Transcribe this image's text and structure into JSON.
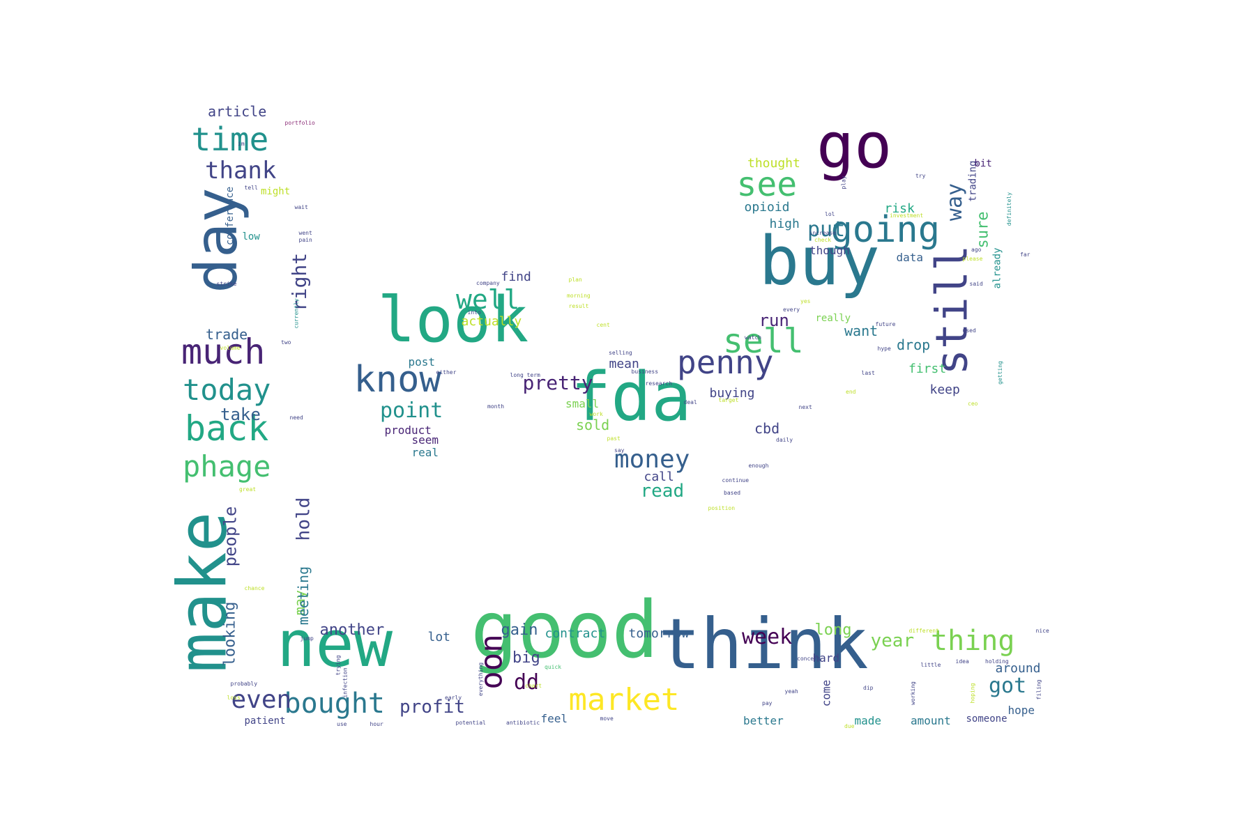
{
  "wordcloud": {
    "palette": [
      "#440154",
      "#482475",
      "#414487",
      "#355f8d",
      "#2a788e",
      "#21918c",
      "#22a884",
      "#44bf70",
      "#7ad151",
      "#bddf26",
      "#fde725"
    ],
    "words": [
      {
        "text": "good",
        "weight": 100,
        "color": "#44bf70"
      },
      {
        "text": "think",
        "weight": 92,
        "color": "#355f8d"
      },
      {
        "text": "new",
        "weight": 88,
        "color": "#22a884"
      },
      {
        "text": "make",
        "weight": 88,
        "color": "#21918c"
      },
      {
        "text": "fda",
        "weight": 86,
        "color": "#22a884"
      },
      {
        "text": "buy",
        "weight": 84,
        "color": "#2a788e"
      },
      {
        "text": "look",
        "weight": 80,
        "color": "#22a884"
      },
      {
        "text": "go",
        "weight": 80,
        "color": "#440154"
      },
      {
        "text": "day",
        "weight": 78,
        "color": "#355f8d"
      },
      {
        "text": "still",
        "weight": 58,
        "color": "#414487"
      },
      {
        "text": "going",
        "weight": 50,
        "color": "#2a788e"
      },
      {
        "text": "know",
        "weight": 50,
        "color": "#355f8d"
      },
      {
        "text": "much",
        "weight": 48,
        "color": "#482475"
      },
      {
        "text": "back",
        "weight": 48,
        "color": "#22a884"
      },
      {
        "text": "sell",
        "weight": 46,
        "color": "#44bf70"
      },
      {
        "text": "see",
        "weight": 46,
        "color": "#44bf70"
      },
      {
        "text": "penny",
        "weight": 44,
        "color": "#414487"
      },
      {
        "text": "time",
        "weight": 44,
        "color": "#21918c"
      },
      {
        "text": "market",
        "weight": 44,
        "color": "#fde725"
      },
      {
        "text": "oon",
        "weight": 44,
        "color": "#440154"
      },
      {
        "text": "today",
        "weight": 40,
        "color": "#21918c"
      },
      {
        "text": "phage",
        "weight": 40,
        "color": "#44bf70"
      },
      {
        "text": "bought",
        "weight": 38,
        "color": "#2a788e"
      },
      {
        "text": "thing",
        "weight": 38,
        "color": "#7ad151"
      },
      {
        "text": "well",
        "weight": 36,
        "color": "#22a884"
      },
      {
        "text": "money",
        "weight": 34,
        "color": "#355f8d"
      },
      {
        "text": "even",
        "weight": 34,
        "color": "#414487"
      },
      {
        "text": "thank",
        "weight": 32,
        "color": "#414487"
      },
      {
        "text": "point",
        "weight": 30,
        "color": "#21918c"
      },
      {
        "text": "week",
        "weight": 30,
        "color": "#440154"
      },
      {
        "text": "dd",
        "weight": 30,
        "color": "#440154"
      },
      {
        "text": "got",
        "weight": 30,
        "color": "#2a788e"
      },
      {
        "text": "put",
        "weight": 30,
        "color": "#2a788e"
      },
      {
        "text": "way",
        "weight": 30,
        "color": "#355f8d"
      },
      {
        "text": "right",
        "weight": 28,
        "color": "#414487"
      },
      {
        "text": "pretty",
        "weight": 28,
        "color": "#482475"
      },
      {
        "text": "read",
        "weight": 26,
        "color": "#22a884"
      },
      {
        "text": "year",
        "weight": 26,
        "color": "#7ad151"
      },
      {
        "text": "profit",
        "weight": 26,
        "color": "#414487"
      },
      {
        "text": "hold",
        "weight": 26,
        "color": "#414487"
      },
      {
        "text": "take",
        "weight": 24,
        "color": "#355f8d"
      },
      {
        "text": "people",
        "weight": 24,
        "color": "#414487"
      },
      {
        "text": "run",
        "weight": 24,
        "color": "#482475"
      },
      {
        "text": "big",
        "weight": 22,
        "color": "#414487"
      },
      {
        "text": "sure",
        "weight": 22,
        "color": "#44bf70"
      },
      {
        "text": "another",
        "weight": 22,
        "color": "#414487"
      },
      {
        "text": "gain",
        "weight": 22,
        "color": "#355f8d"
      },
      {
        "text": "long",
        "weight": 22,
        "color": "#7ad151"
      },
      {
        "text": "looking",
        "weight": 22,
        "color": "#355f8d"
      },
      {
        "text": "trade",
        "weight": 20,
        "color": "#355f8d"
      },
      {
        "text": "article",
        "weight": 20,
        "color": "#414487"
      },
      {
        "text": "want",
        "weight": 20,
        "color": "#2a788e"
      },
      {
        "text": "drop",
        "weight": 20,
        "color": "#2a788e"
      },
      {
        "text": "may",
        "weight": 20,
        "color": "#7ad151"
      },
      {
        "text": "sold",
        "weight": 20,
        "color": "#7ad151"
      },
      {
        "text": "cbd",
        "weight": 20,
        "color": "#414487"
      },
      {
        "text": "meeting",
        "weight": 20,
        "color": "#2a788e"
      },
      {
        "text": "thought",
        "weight": 18,
        "color": "#bddf26"
      },
      {
        "text": "contract",
        "weight": 18,
        "color": "#21918c"
      },
      {
        "text": "tomorrow",
        "weight": 18,
        "color": "#355f8d"
      },
      {
        "text": "opioid",
        "weight": 18,
        "color": "#2a788e"
      },
      {
        "text": "call",
        "weight": 18,
        "color": "#414487"
      },
      {
        "text": "actually",
        "weight": 18,
        "color": "#bddf26"
      },
      {
        "text": "risk",
        "weight": 18,
        "color": "#22a884"
      },
      {
        "text": "keep",
        "weight": 18,
        "color": "#414487"
      },
      {
        "text": "lot",
        "weight": 18,
        "color": "#355f8d"
      },
      {
        "text": "first",
        "weight": 18,
        "color": "#44bf70"
      },
      {
        "text": "high",
        "weight": 18,
        "color": "#2a788e"
      },
      {
        "text": "buying",
        "weight": 18,
        "color": "#414487"
      },
      {
        "text": "find",
        "weight": 18,
        "color": "#414487"
      },
      {
        "text": "mean",
        "weight": 18,
        "color": "#414487"
      },
      {
        "text": "around",
        "weight": 18,
        "color": "#355f8d"
      },
      {
        "text": "hope",
        "weight": 16,
        "color": "#355f8d"
      },
      {
        "text": "come",
        "weight": 16,
        "color": "#414487"
      },
      {
        "text": "product",
        "weight": 16,
        "color": "#482475"
      },
      {
        "text": "small",
        "weight": 16,
        "color": "#7ad151"
      },
      {
        "text": "though",
        "weight": 16,
        "color": "#414487"
      },
      {
        "text": "data",
        "weight": 16,
        "color": "#355f8d"
      },
      {
        "text": "post",
        "weight": 16,
        "color": "#2a788e"
      },
      {
        "text": "seem",
        "weight": 16,
        "color": "#482475"
      },
      {
        "text": "real",
        "weight": 16,
        "color": "#2a788e"
      },
      {
        "text": "hard",
        "weight": 16,
        "color": "#414487"
      },
      {
        "text": "feel",
        "weight": 16,
        "color": "#355f8d"
      },
      {
        "text": "better",
        "weight": 16,
        "color": "#2a788e"
      },
      {
        "text": "made",
        "weight": 16,
        "color": "#21918c"
      },
      {
        "text": "amount",
        "weight": 16,
        "color": "#2a788e"
      },
      {
        "text": "someone",
        "weight": 14,
        "color": "#414487"
      },
      {
        "text": "patient",
        "weight": 14,
        "color": "#414487"
      },
      {
        "text": "already",
        "weight": 14,
        "color": "#21918c"
      },
      {
        "text": "trading",
        "weight": 14,
        "color": "#414487"
      },
      {
        "text": "might",
        "weight": 14,
        "color": "#bddf26"
      },
      {
        "text": "low",
        "weight": 14,
        "color": "#21918c"
      },
      {
        "text": "conference",
        "weight": 14,
        "color": "#355f8d"
      },
      {
        "text": "bit",
        "weight": 14,
        "color": "#482475"
      },
      {
        "text": "really",
        "weight": 14,
        "color": "#7ad151"
      },
      {
        "text": "portfolio",
        "weight": 8,
        "color": "#8a2b76"
      },
      {
        "text": "im",
        "weight": 8,
        "color": "#414487"
      },
      {
        "text": "tell",
        "weight": 8,
        "color": "#414487"
      },
      {
        "text": "wait",
        "weight": 8,
        "color": "#414487"
      },
      {
        "text": "went",
        "weight": 8,
        "color": "#414487"
      },
      {
        "text": "pain",
        "weight": 8,
        "color": "#414487"
      },
      {
        "text": "strike",
        "weight": 8,
        "color": "#414487"
      },
      {
        "text": "currently",
        "weight": 8,
        "color": "#21918c"
      },
      {
        "text": "two",
        "weight": 8,
        "color": "#414487"
      },
      {
        "text": "volume",
        "weight": 8,
        "color": "#bddf26"
      },
      {
        "text": "need",
        "weight": 8,
        "color": "#414487"
      },
      {
        "text": "great",
        "weight": 8,
        "color": "#bddf26"
      },
      {
        "text": "chance",
        "weight": 8,
        "color": "#bddf26"
      },
      {
        "text": "probably",
        "weight": 8,
        "color": "#414487"
      },
      {
        "text": "loss",
        "weight": 8,
        "color": "#bddf26"
      },
      {
        "text": "jump",
        "weight": 8,
        "color": "#414487"
      },
      {
        "text": "trying",
        "weight": 8,
        "color": "#414487"
      },
      {
        "text": "infection",
        "weight": 8,
        "color": "#414487"
      },
      {
        "text": "early",
        "weight": 8,
        "color": "#414487"
      },
      {
        "text": "everything",
        "weight": 8,
        "color": "#414487"
      },
      {
        "text": "hour",
        "weight": 8,
        "color": "#414487"
      },
      {
        "text": "potential",
        "weight": 8,
        "color": "#414487"
      },
      {
        "text": "antibiotic",
        "weight": 8,
        "color": "#414487"
      },
      {
        "text": "quick",
        "weight": 8,
        "color": "#44bf70"
      },
      {
        "text": "chart",
        "weight": 8,
        "color": "#bddf26"
      },
      {
        "text": "company",
        "weight": 8,
        "color": "#414487"
      },
      {
        "text": "plan",
        "weight": 8,
        "color": "#bddf26"
      },
      {
        "text": "morning",
        "weight": 8,
        "color": "#bddf26"
      },
      {
        "text": "result",
        "weight": 8,
        "color": "#bddf26"
      },
      {
        "text": "cent",
        "weight": 8,
        "color": "#bddf26"
      },
      {
        "text": "selling",
        "weight": 8,
        "color": "#414487"
      },
      {
        "text": "into",
        "weight": 8,
        "color": "#414487"
      },
      {
        "text": "either",
        "weight": 8,
        "color": "#414487"
      },
      {
        "text": "long term",
        "weight": 8,
        "color": "#414487"
      },
      {
        "text": "month",
        "weight": 8,
        "color": "#414487"
      },
      {
        "text": "research",
        "weight": 8,
        "color": "#414487"
      },
      {
        "text": "business",
        "weight": 8,
        "color": "#414487"
      },
      {
        "text": "work",
        "weight": 8,
        "color": "#bddf26"
      },
      {
        "text": "past",
        "weight": 8,
        "color": "#bddf26"
      },
      {
        "text": "say",
        "weight": 8,
        "color": "#414487"
      },
      {
        "text": "deal",
        "weight": 8,
        "color": "#414487"
      },
      {
        "text": "target",
        "weight": 8,
        "color": "#bddf26"
      },
      {
        "text": "daily",
        "weight": 8,
        "color": "#414487"
      },
      {
        "text": "enough",
        "weight": 8,
        "color": "#414487"
      },
      {
        "text": "continue",
        "weight": 8,
        "color": "#414487"
      },
      {
        "text": "based",
        "weight": 8,
        "color": "#414487"
      },
      {
        "text": "position",
        "weight": 8,
        "color": "#bddf26"
      },
      {
        "text": "watch",
        "weight": 8,
        "color": "#414487"
      },
      {
        "text": "next",
        "weight": 8,
        "color": "#414487"
      },
      {
        "text": "end",
        "weight": 8,
        "color": "#bddf26"
      },
      {
        "text": "last",
        "weight": 8,
        "color": "#414487"
      },
      {
        "text": "hype",
        "weight": 8,
        "color": "#414487"
      },
      {
        "text": "future",
        "weight": 8,
        "color": "#414487"
      },
      {
        "text": "used",
        "weight": 8,
        "color": "#414487"
      },
      {
        "text": "getting",
        "weight": 8,
        "color": "#21918c"
      },
      {
        "text": "increase",
        "weight": 8,
        "color": "#414487"
      },
      {
        "text": "check",
        "weight": 8,
        "color": "#bddf26"
      },
      {
        "text": "please",
        "weight": 8,
        "color": "#bddf26"
      },
      {
        "text": "yes",
        "weight": 8,
        "color": "#bddf26"
      },
      {
        "text": "every",
        "weight": 8,
        "color": "#414487"
      },
      {
        "text": "try",
        "weight": 8,
        "color": "#414487"
      },
      {
        "text": "definitely",
        "weight": 8,
        "color": "#21918c"
      },
      {
        "text": "investment",
        "weight": 8,
        "color": "#bddf26"
      },
      {
        "text": "play",
        "weight": 8,
        "color": "#414487"
      },
      {
        "text": "lol",
        "weight": 8,
        "color": "#414487"
      },
      {
        "text": "ago",
        "weight": 8,
        "color": "#414487"
      },
      {
        "text": "far",
        "weight": 8,
        "color": "#414487"
      },
      {
        "text": "said",
        "weight": 8,
        "color": "#414487"
      },
      {
        "text": "different",
        "weight": 8,
        "color": "#bddf26"
      },
      {
        "text": "nice",
        "weight": 8,
        "color": "#414487"
      },
      {
        "text": "holding",
        "weight": 8,
        "color": "#414487"
      },
      {
        "text": "idea",
        "weight": 8,
        "color": "#414487"
      },
      {
        "text": "little",
        "weight": 8,
        "color": "#414487"
      },
      {
        "text": "concern",
        "weight": 8,
        "color": "#414487"
      },
      {
        "text": "yeah",
        "weight": 8,
        "color": "#414487"
      },
      {
        "text": "dip",
        "weight": 8,
        "color": "#414487"
      },
      {
        "text": "working",
        "weight": 8,
        "color": "#414487"
      },
      {
        "text": "hoping",
        "weight": 8,
        "color": "#bddf26"
      },
      {
        "text": "filing",
        "weight": 8,
        "color": "#414487"
      },
      {
        "text": "due",
        "weight": 8,
        "color": "#bddf26"
      },
      {
        "text": "move",
        "weight": 8,
        "color": "#414487"
      },
      {
        "text": "pay",
        "weight": 8,
        "color": "#414487"
      },
      {
        "text": "use",
        "weight": 8,
        "color": "#414487"
      },
      {
        "text": "ceo",
        "weight": 8,
        "color": "#bddf26"
      }
    ]
  }
}
